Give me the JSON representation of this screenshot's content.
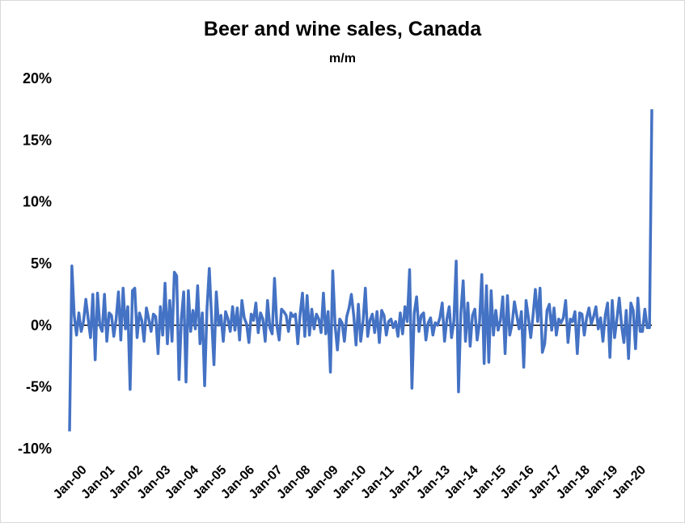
{
  "chart_data": {
    "type": "line",
    "title": "Beer and wine sales, Canada",
    "subtitle": "m/m",
    "xlabel": "",
    "ylabel": "",
    "ylim": [
      -10,
      20
    ],
    "y_ticks": [
      -10,
      -5,
      0,
      5,
      10,
      15,
      20
    ],
    "y_tick_labels": [
      "-10%",
      "-5%",
      "0%",
      "5%",
      "10%",
      "15%",
      "20%"
    ],
    "x_tick_labels": [
      "Jan-00",
      "Jan-01",
      "Jan-02",
      "Jan-03",
      "Jan-04",
      "Jan-05",
      "Jan-06",
      "Jan-07",
      "Jan-08",
      "Jan-09",
      "Jan-10",
      "Jan-11",
      "Jan-12",
      "Jan-13",
      "Jan-14",
      "Jan-15",
      "Jan-16",
      "Jan-17",
      "Jan-18",
      "Jan-19",
      "Jan-20"
    ],
    "grid": false,
    "legend": "none",
    "series": [
      {
        "color": "#4472C4",
        "start": "Jan-00",
        "frequency": "monthly",
        "values": [
          -8.6,
          4.8,
          0.8,
          -0.8,
          1.0,
          -0.5,
          0.3,
          2.1,
          0.5,
          -1.0,
          2.5,
          -2.8,
          2.6,
          0.0,
          -0.5,
          2.5,
          -1.3,
          1.0,
          0.8,
          -0.9,
          0.5,
          2.7,
          -1.2,
          3.0,
          -0.3,
          1.5,
          -5.2,
          2.8,
          3.0,
          -1.0,
          1.0,
          0.4,
          -1.3,
          1.4,
          0.5,
          -0.5,
          0.9,
          0.7,
          -2.3,
          1.5,
          -0.8,
          3.4,
          -1.5,
          2.0,
          -1.3,
          4.3,
          4.0,
          -4.4,
          0.5,
          2.7,
          -4.6,
          2.8,
          -0.5,
          1.2,
          -0.3,
          3.2,
          -1.5,
          1.0,
          -4.9,
          1.3,
          4.6,
          0.5,
          -3.2,
          2.7,
          0.0,
          0.8,
          -1.3,
          1.1,
          0.5,
          -0.5,
          1.5,
          -0.4,
          1.4,
          -1.2,
          2.0,
          0.6,
          0.1,
          -1.4,
          0.9,
          0.4,
          1.8,
          -0.6,
          1.0,
          0.5,
          -1.3,
          2.0,
          -0.2,
          -0.7,
          3.8,
          0.0,
          -1.2,
          1.3,
          1.1,
          0.8,
          -0.5,
          1.0,
          0.7,
          0.9,
          -1.5,
          0.9,
          2.6,
          -0.9,
          2.4,
          -0.8,
          1.3,
          -0.3,
          0.9,
          0.5,
          -0.6,
          2.6,
          -0.7,
          1.1,
          -3.8,
          4.4,
          0.0,
          -2.0,
          0.5,
          0.2,
          -1.3,
          0.7,
          1.4,
          2.5,
          0.8,
          -1.6,
          1.7,
          -1.3,
          0.3,
          3.0,
          -0.9,
          0.4,
          0.9,
          -0.6,
          1.1,
          -1.4,
          1.2,
          0.8,
          -0.8,
          0.3,
          0.5,
          -0.2,
          0.3,
          -0.9,
          1.0,
          -0.7,
          1.5,
          0.3,
          4.5,
          -5.1,
          1.0,
          2.3,
          -0.5,
          0.8,
          1.0,
          -1.2,
          0.2,
          0.6,
          -0.8,
          0.2,
          0.0,
          0.6,
          1.8,
          -1.3,
          0.5,
          1.5,
          -1.0,
          0.3,
          5.2,
          -5.4,
          1.0,
          3.6,
          -1.3,
          1.8,
          -1.7,
          0.8,
          1.3,
          -1.2,
          0.2,
          4.1,
          -3.1,
          3.2,
          -3.0,
          2.8,
          -0.8,
          1.2,
          -0.4,
          0.4,
          2.3,
          -2.3,
          2.4,
          -0.8,
          0.1,
          1.9,
          0.8,
          -0.3,
          1.1,
          -3.4,
          2.0,
          0.6,
          -1.0,
          0.8,
          2.9,
          0.3,
          3.0,
          -2.2,
          -1.5,
          1.2,
          1.7,
          -0.4,
          1.4,
          -0.8,
          0.5,
          0.2,
          0.6,
          2.0,
          -1.4,
          0.5,
          0.3,
          1.1,
          -2.3,
          1.0,
          0.9,
          -0.8,
          0.6,
          1.4,
          0.1,
          0.7,
          1.5,
          -0.3,
          0.6,
          -1.3,
          0.8,
          1.8,
          -2.6,
          2.0,
          -1.0,
          0.5,
          2.2,
          0.0,
          -1.4,
          1.2,
          -2.7,
          1.8,
          1.2,
          -1.9,
          2.2,
          -0.5,
          -0.5,
          1.3,
          -0.2,
          -0.2,
          17.5
        ]
      }
    ]
  }
}
